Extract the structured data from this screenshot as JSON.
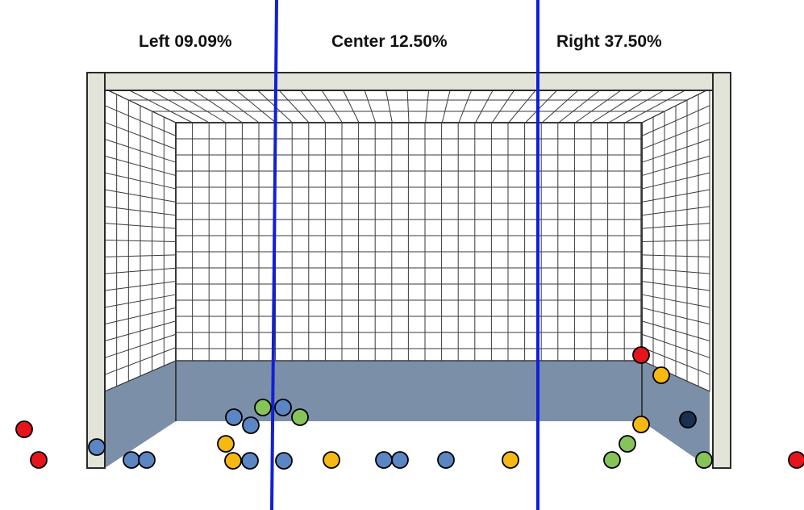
{
  "zones": [
    {
      "label": "Left 09.09%"
    },
    {
      "label": "Center 12.50%"
    },
    {
      "label": "Right 37.50%"
    }
  ],
  "colors": {
    "divider": "#1020d8",
    "frame": "#e3e4d9",
    "frame_outline": "#2a2a2a",
    "net": "#3a3a3a",
    "backboard": "#7b8fa8",
    "red": "#e8141b",
    "blue": "#5a86c4",
    "yellow": "#f6b812",
    "green": "#86c45a",
    "navy": "#1b2f4e"
  }
}
